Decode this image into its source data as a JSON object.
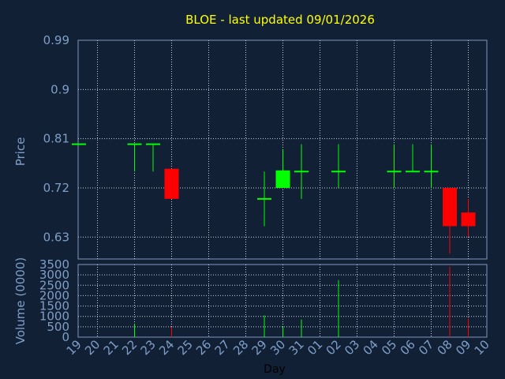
{
  "chart_data": {
    "type": "candlestick",
    "title": "BLOE - last updated 09/01/2026",
    "xlabel": "Day",
    "x_ticks": [
      "19",
      "20",
      "21",
      "22",
      "23",
      "24",
      "25",
      "26",
      "27",
      "28",
      "29",
      "30",
      "31",
      "01",
      "02",
      "03",
      "04",
      "05",
      "06",
      "07",
      "08",
      "09",
      "10"
    ],
    "price": {
      "ylabel": "Price",
      "ylim": [
        0.59,
        0.99
      ],
      "y_ticks": [
        "0.99",
        "0.9",
        "0.81",
        "0.72",
        "0.63"
      ],
      "y_tick_values": [
        0.99,
        0.9,
        0.81,
        0.72,
        0.63
      ],
      "candles": [
        {
          "day": "19",
          "open": 0.8,
          "high": 0.8,
          "low": 0.8,
          "close": 0.8
        },
        {
          "day": "22",
          "open": 0.8,
          "high": 0.8,
          "low": 0.75,
          "close": 0.8
        },
        {
          "day": "23",
          "open": 0.8,
          "high": 0.8,
          "low": 0.75,
          "close": 0.8
        },
        {
          "day": "24",
          "open": 0.755,
          "high": 0.755,
          "low": 0.7,
          "close": 0.7
        },
        {
          "day": "29",
          "open": 0.7,
          "high": 0.75,
          "low": 0.65,
          "close": 0.7
        },
        {
          "day": "30",
          "open": 0.72,
          "high": 0.79,
          "low": 0.72,
          "close": 0.752
        },
        {
          "day": "31",
          "open": 0.75,
          "high": 0.8,
          "low": 0.7,
          "close": 0.75
        },
        {
          "day": "02",
          "open": 0.75,
          "high": 0.8,
          "low": 0.72,
          "close": 0.75
        },
        {
          "day": "05",
          "open": 0.75,
          "high": 0.8,
          "low": 0.72,
          "close": 0.75
        },
        {
          "day": "06",
          "open": 0.75,
          "high": 0.8,
          "low": 0.75,
          "close": 0.75
        },
        {
          "day": "07",
          "open": 0.75,
          "high": 0.8,
          "low": 0.72,
          "close": 0.75
        },
        {
          "day": "08",
          "open": 0.72,
          "high": 0.72,
          "low": 0.6,
          "close": 0.65
        },
        {
          "day": "09",
          "open": 0.675,
          "high": 0.7,
          "low": 0.63,
          "close": 0.65
        }
      ]
    },
    "volume": {
      "ylabel": "Volume (0000)",
      "ylim": [
        0,
        3500
      ],
      "y_ticks": [
        "3500",
        "3000",
        "2500",
        "2000",
        "1500",
        "1000",
        "500",
        "0"
      ],
      "y_tick_values": [
        3500,
        3000,
        2500,
        2000,
        1500,
        1000,
        500,
        0
      ],
      "bars": [
        {
          "day": "22",
          "value": 650
        },
        {
          "day": "24",
          "value": 500
        },
        {
          "day": "29",
          "value": 1050
        },
        {
          "day": "30",
          "value": 500
        },
        {
          "day": "31",
          "value": 850
        },
        {
          "day": "02",
          "value": 2750
        },
        {
          "day": "08",
          "value": 3400
        },
        {
          "day": "09",
          "value": 900
        }
      ]
    },
    "grid": true,
    "colors": {
      "up": "#00ff00",
      "down": "#ff0000",
      "background": "#112035",
      "title": "#ffff00",
      "axis_text": "#7f9fc8",
      "grid": "#c8d0dc"
    }
  }
}
